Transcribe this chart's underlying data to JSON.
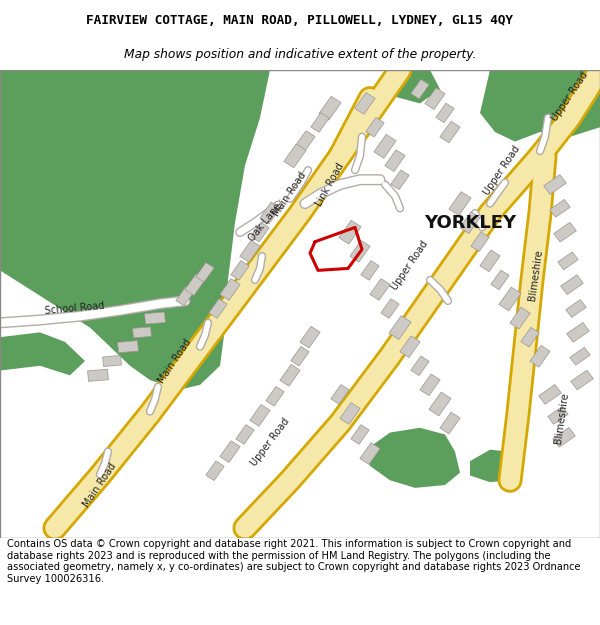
{
  "title_line1": "FAIRVIEW COTTAGE, MAIN ROAD, PILLOWELL, LYDNEY, GL15 4QY",
  "title_line2": "Map shows position and indicative extent of the property.",
  "footer": "Contains OS data © Crown copyright and database right 2021. This information is subject to Crown copyright and database rights 2023 and is reproduced with the permission of HM Land Registry. The polygons (including the associated geometry, namely x, y co-ordinates) are subject to Crown copyright and database rights 2023 Ordnance Survey 100026316.",
  "bg_color": "#ffffff",
  "map_bg": "#f5f3f0",
  "green_color": "#5c9e5c",
  "road_yellow_fill": "#f5e8a8",
  "road_yellow_edge": "#d4a800",
  "road_gray_fill": "#e0dcd8",
  "road_gray_edge": "#b0aca8",
  "building_color": "#cdc9c4",
  "building_edge": "#9a9690",
  "text_color": "#000000",
  "road_text_color": "#333333",
  "red_plot": "#cc0000",
  "white_road": "#ffffff"
}
